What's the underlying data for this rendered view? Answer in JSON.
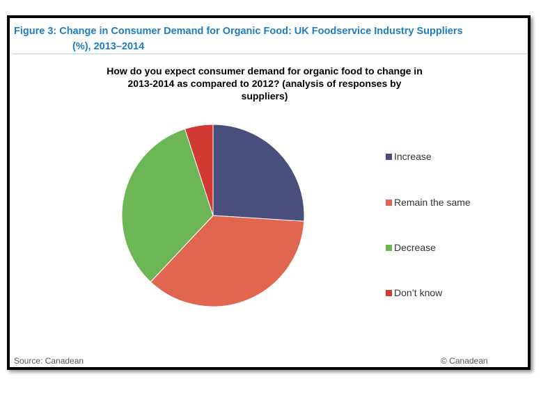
{
  "figure": {
    "title_line1": "Figure 3: Change in Consumer Demand for Organic Food: UK Foodservice Industry Suppliers",
    "title_line2": "(%), 2013–2014"
  },
  "chart_data": {
    "type": "pie",
    "title_lines": [
      "How do you expect consumer demand for organic food to change in",
      "2013-2014 as compared to 2012? (analysis of responses by",
      "suppliers)"
    ],
    "categories": [
      "Increase",
      "Remain the same",
      "Decrease",
      "Don’t know"
    ],
    "values": [
      26,
      36,
      33,
      5
    ],
    "colors": [
      "#4a4e7c",
      "#e06650",
      "#6db655",
      "#d03a33"
    ],
    "legend_position": "right"
  },
  "footer": {
    "source": "Source: Canadean",
    "copyright": "© Canadean"
  }
}
